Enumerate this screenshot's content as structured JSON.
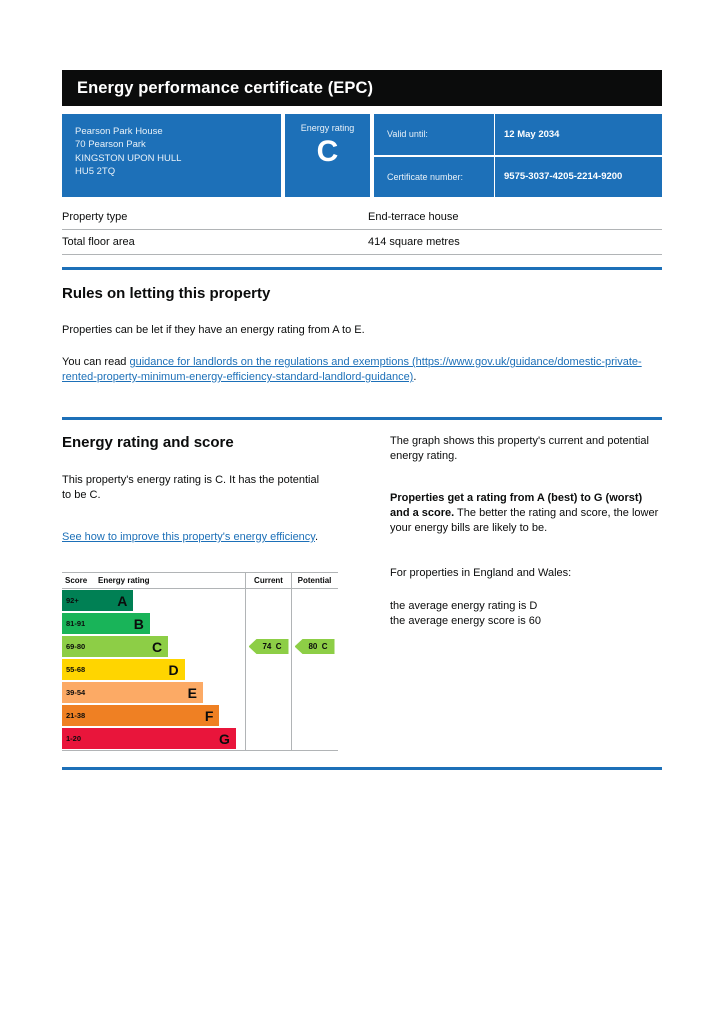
{
  "header": {
    "title": "Energy performance certificate (EPC)"
  },
  "summary": {
    "address_lines": [
      "Pearson Park House",
      "70 Pearson Park",
      "KINGSTON UPON HULL",
      "HU5 2TQ"
    ],
    "energy_rating_label": "Energy rating",
    "energy_rating": "C",
    "valid_until_label": "Valid until:",
    "valid_until": "12 May 2034",
    "certificate_number_label": "Certificate number:",
    "certificate_number": "9575-3037-4205-2214-9200"
  },
  "property_table": {
    "rows": [
      {
        "label": "Property type",
        "value": "End-terrace house"
      },
      {
        "label": "Total floor area",
        "value": "414 square metres"
      }
    ]
  },
  "rules_section": {
    "heading": "Rules on letting this property",
    "paragraph1": "Properties can be let if they have an energy rating from A to E.",
    "paragraph2_prefix": "You can read ",
    "link_text": "guidance for landlords on the regulations and exemptions (https://www.gov.uk/guidance/domestic-private-rented-property-minimum-energy-efficiency-standard-landlord-guidance)",
    "paragraph2_suffix": "."
  },
  "rating_section": {
    "heading": "Energy rating and score",
    "paragraph1": "This property's energy rating is C. It has the potential to be C.",
    "link_text": "See how to improve this property's energy efficiency",
    "link_suffix": ".",
    "right_paragraph1": "The graph shows this property's current and potential energy rating.",
    "right_paragraph2_bold": "Properties get a rating from A (best) to G (worst) and a score.",
    "right_paragraph2_rest": " The better the rating and score, the lower your energy bills are likely to be.",
    "right_paragraph3": "For properties in England and Wales:",
    "right_line1": "the average energy rating is D",
    "right_line2": "the average energy score is 60"
  },
  "chart_data": {
    "type": "bar",
    "title": "Energy rating and score bands",
    "columns": {
      "score": "Score",
      "rating": "Energy rating",
      "current": "Current",
      "potential": "Potential"
    },
    "bands": [
      {
        "score": "92+",
        "letter": "A",
        "color": "#008054",
        "width_pct": 39
      },
      {
        "score": "81-91",
        "letter": "B",
        "color": "#19b459",
        "width_pct": 48
      },
      {
        "score": "69-80",
        "letter": "C",
        "color": "#8dce46",
        "width_pct": 58
      },
      {
        "score": "55-68",
        "letter": "D",
        "color": "#ffd500",
        "width_pct": 67
      },
      {
        "score": "39-54",
        "letter": "E",
        "color": "#fcaa65",
        "width_pct": 77
      },
      {
        "score": "21-38",
        "letter": "F",
        "color": "#ef8023",
        "width_pct": 86
      },
      {
        "score": "1-20",
        "letter": "G",
        "color": "#e9153b",
        "width_pct": 95
      }
    ],
    "current": {
      "value": 74,
      "letter": "C",
      "band_index": 2,
      "color": "#8dce46"
    },
    "potential": {
      "value": 80,
      "letter": "C",
      "band_index": 2,
      "color": "#8dce46"
    }
  },
  "colors": {
    "govuk_blue": "#1d70b8",
    "banner_black": "#0b0c0c",
    "border_grey": "#b1b4b6"
  }
}
